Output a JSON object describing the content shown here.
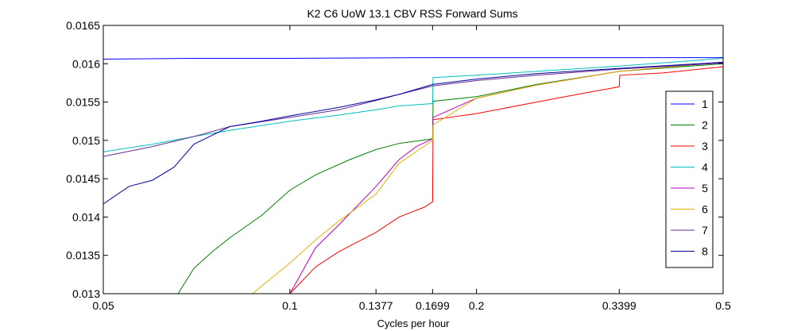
{
  "chart_data": {
    "type": "line",
    "title": "K2 C6 UoW 13.1 CBV RSS Forward Sums",
    "xlabel": "Cycles per hour",
    "ylabel": "",
    "x_scale": "log",
    "xlim": [
      0.05,
      0.5
    ],
    "ylim": [
      0.013,
      0.0165
    ],
    "x_ticks": [
      0.05,
      0.1,
      0.1377,
      0.1699,
      0.2,
      0.3399,
      0.5
    ],
    "x_tick_labels": [
      "0.05",
      "0.1",
      "0.1377",
      "0.1699",
      "0.2",
      "0.3399",
      "0.5"
    ],
    "y_ticks": [
      0.013,
      0.0135,
      0.014,
      0.0145,
      0.015,
      0.0155,
      0.016,
      0.0165
    ],
    "y_tick_labels": [
      "0.013",
      "0.0135",
      "0.014",
      "0.0145",
      "0.015",
      "0.0155",
      "0.016",
      "0.0165"
    ],
    "grid": false,
    "legend_position": "right",
    "series": [
      {
        "name": "1",
        "color": "#0000ff",
        "x": [
          0.05,
          0.07,
          0.1,
          0.17,
          0.3399,
          0.5
        ],
        "y": [
          0.01606,
          0.01607,
          0.01607,
          0.01608,
          0.01608,
          0.01608
        ]
      },
      {
        "name": "2",
        "color": "#008000",
        "x": [
          0.066,
          0.07,
          0.075,
          0.08,
          0.09,
          0.1,
          0.11,
          0.125,
          0.1377,
          0.15,
          0.1699,
          0.1702,
          0.2,
          0.25,
          0.3399,
          0.5
        ],
        "y": [
          0.013,
          0.01333,
          0.01355,
          0.01373,
          0.01402,
          0.01435,
          0.01455,
          0.01475,
          0.01488,
          0.01496,
          0.01502,
          0.01551,
          0.01557,
          0.01573,
          0.0159,
          0.016
        ]
      },
      {
        "name": "3",
        "color": "#ff0000",
        "x": [
          0.1,
          0.11,
          0.12,
          0.1377,
          0.15,
          0.165,
          0.1699,
          0.1702,
          0.2,
          0.25,
          0.3,
          0.3399,
          0.3405,
          0.4,
          0.5
        ],
        "y": [
          0.013,
          0.01335,
          0.01355,
          0.0138,
          0.014,
          0.01413,
          0.0142,
          0.01527,
          0.01535,
          0.0155,
          0.01562,
          0.0157,
          0.01585,
          0.01588,
          0.01596
        ]
      },
      {
        "name": "4",
        "color": "#00bfbf",
        "x": [
          0.05,
          0.06,
          0.07,
          0.08,
          0.1,
          0.12,
          0.1377,
          0.15,
          0.1699,
          0.1702,
          0.2,
          0.25,
          0.3399,
          0.5
        ],
        "y": [
          0.01485,
          0.01495,
          0.01505,
          0.01513,
          0.01525,
          0.01533,
          0.0154,
          0.01545,
          0.01548,
          0.01582,
          0.01585,
          0.0159,
          0.01597,
          0.01607
        ]
      },
      {
        "name": "5",
        "color": "#bf00bf",
        "x": [
          0.1,
          0.11,
          0.12,
          0.1377,
          0.15,
          0.16,
          0.1699,
          0.1702,
          0.2,
          0.25,
          0.3399,
          0.5
        ],
        "y": [
          0.013,
          0.0136,
          0.0139,
          0.0144,
          0.01475,
          0.01492,
          0.01502,
          0.0153,
          0.01555,
          0.01572,
          0.0159,
          0.01602
        ]
      },
      {
        "name": "6",
        "color": "#dfb400",
        "x": [
          0.087,
          0.1,
          0.11,
          0.12,
          0.1377,
          0.15,
          0.1699,
          0.1702,
          0.2,
          0.25,
          0.3399,
          0.5
        ],
        "y": [
          0.013,
          0.0134,
          0.0137,
          0.01395,
          0.0143,
          0.0147,
          0.015,
          0.0152,
          0.01555,
          0.01572,
          0.0159,
          0.01602
        ]
      },
      {
        "name": "7",
        "color": "#6a2c8c",
        "x": [
          0.05,
          0.06,
          0.07,
          0.08,
          0.1,
          0.12,
          0.1377,
          0.15,
          0.1699,
          0.2,
          0.25,
          0.3399,
          0.5
        ],
        "y": [
          0.01479,
          0.01492,
          0.01505,
          0.01518,
          0.0153,
          0.0154,
          0.01552,
          0.0156,
          0.01571,
          0.01578,
          0.01585,
          0.01593,
          0.01601
        ]
      },
      {
        "name": "8",
        "color": "#0000a0",
        "x": [
          0.05,
          0.055,
          0.06,
          0.065,
          0.07,
          0.08,
          0.09,
          0.1,
          0.12,
          0.1377,
          0.15,
          0.1699,
          0.2,
          0.25,
          0.3399,
          0.5
        ],
        "y": [
          0.01417,
          0.0144,
          0.01448,
          0.01465,
          0.01495,
          0.01518,
          0.01525,
          0.01532,
          0.01543,
          0.01553,
          0.0156,
          0.01573,
          0.0158,
          0.01587,
          0.01594,
          0.01602
        ]
      }
    ]
  }
}
